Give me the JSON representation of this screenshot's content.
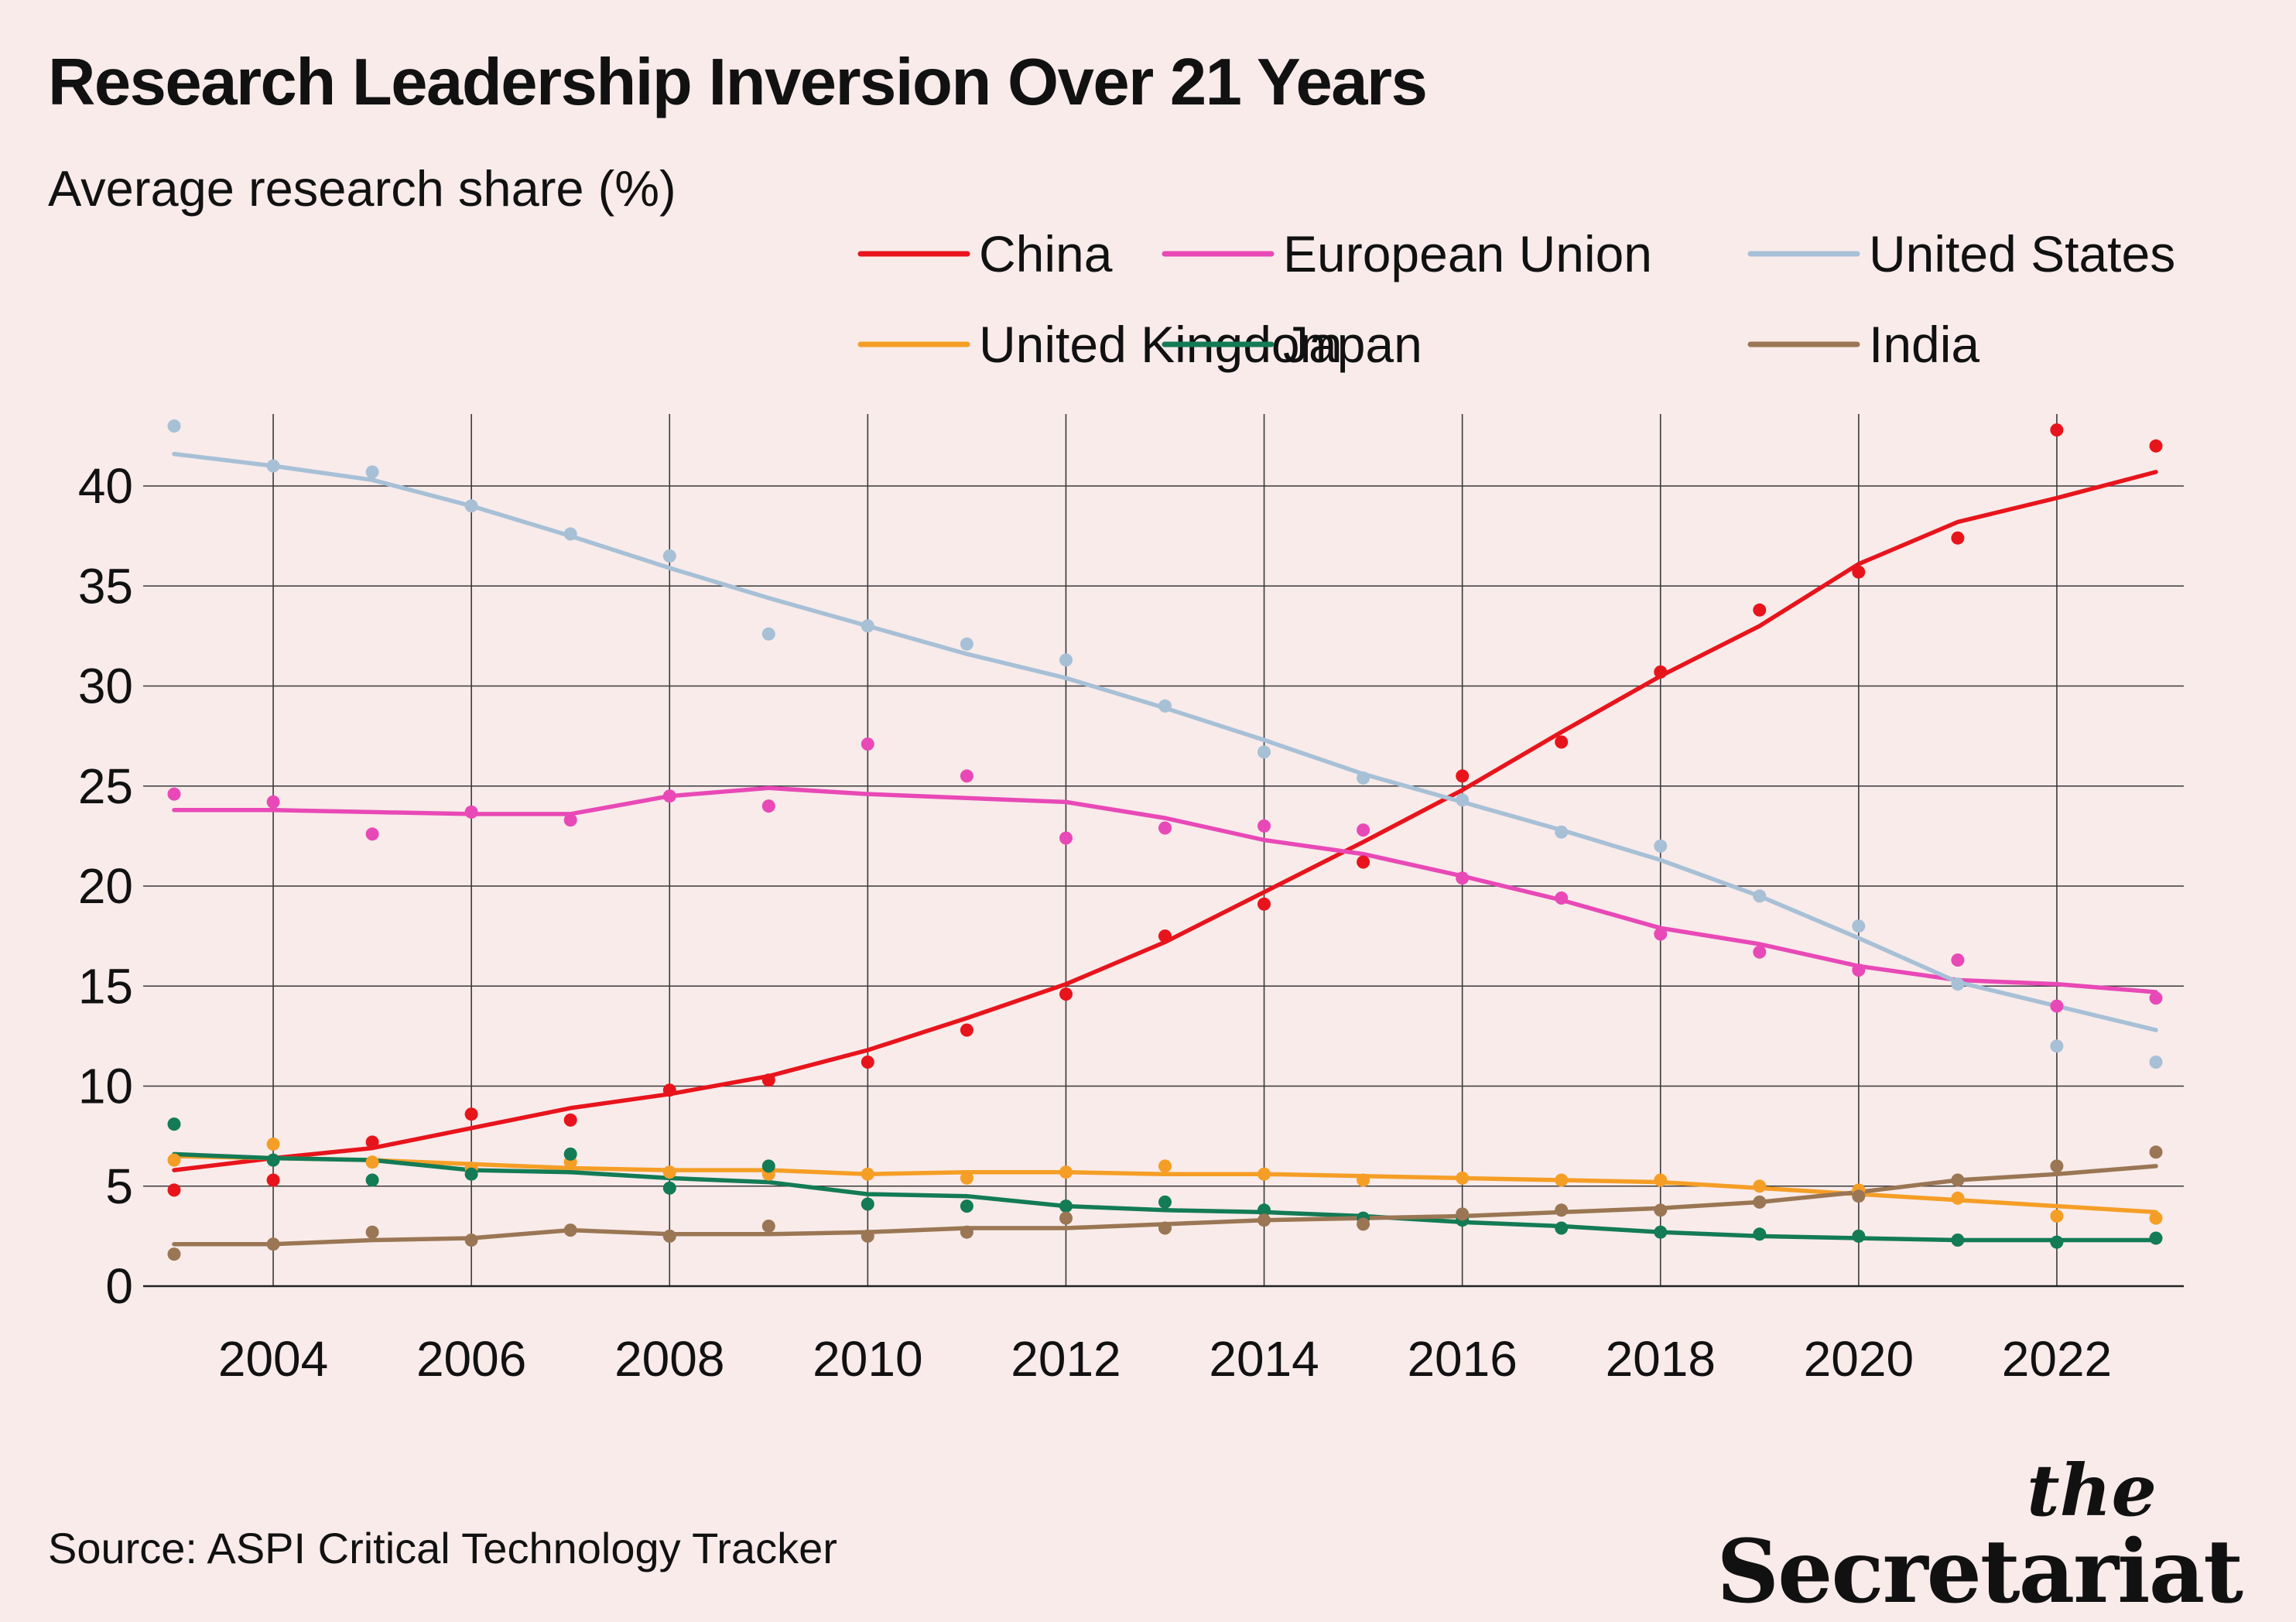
{
  "title": "Research Leadership Inversion Over 21 Years",
  "subtitle": "Average research share (%)",
  "source": "Source: ASPI Critical Technology Tracker",
  "logo": {
    "the": "the",
    "name": "Secretariat"
  },
  "chart_data": {
    "type": "line",
    "x_label": "",
    "y_label": "Average research share (%)",
    "xlim": [
      2003,
      2023
    ],
    "ylim": [
      0,
      42.5
    ],
    "x_ticks": [
      2004,
      2006,
      2008,
      2010,
      2012,
      2014,
      2016,
      2018,
      2020,
      2022
    ],
    "y_ticks": [
      0,
      5,
      10,
      15,
      20,
      25,
      30,
      35,
      40
    ],
    "grid": true,
    "legend_position": "top-right",
    "x": [
      2003,
      2004,
      2005,
      2006,
      2007,
      2008,
      2009,
      2010,
      2011,
      2012,
      2013,
      2014,
      2015,
      2016,
      2017,
      2018,
      2019,
      2020,
      2021,
      2022,
      2023
    ],
    "series": [
      {
        "name": "China",
        "color": "#e8141c",
        "points": [
          4.8,
          5.3,
          7.2,
          8.6,
          8.3,
          9.8,
          10.3,
          11.2,
          12.8,
          14.6,
          17.5,
          19.1,
          21.2,
          25.5,
          27.2,
          30.7,
          33.8,
          35.7,
          37.4,
          42.8,
          42.0
        ],
        "trend": [
          5.8,
          6.4,
          6.9,
          7.9,
          8.9,
          9.6,
          10.5,
          11.8,
          13.4,
          15.1,
          17.2,
          19.7,
          22.2,
          24.8,
          27.7,
          30.5,
          33.0,
          36.1,
          38.2,
          39.4,
          40.7
        ]
      },
      {
        "name": "European Union",
        "color": "#e849b6",
        "points": [
          24.6,
          24.2,
          22.6,
          23.7,
          23.3,
          24.5,
          24.0,
          27.1,
          25.5,
          22.4,
          22.9,
          23.0,
          22.8,
          20.4,
          19.4,
          17.6,
          16.7,
          15.8,
          16.3,
          14.0,
          14.4
        ],
        "trend": [
          23.8,
          23.8,
          23.7,
          23.6,
          23.6,
          24.5,
          24.9,
          24.6,
          24.4,
          24.2,
          23.4,
          22.3,
          21.6,
          20.5,
          19.3,
          17.9,
          17.1,
          16.0,
          15.3,
          15.1,
          14.7
        ]
      },
      {
        "name": "United States",
        "color": "#a7c0d6",
        "points": [
          43.0,
          41.0,
          40.7,
          39.0,
          37.6,
          36.5,
          32.6,
          33.0,
          32.1,
          31.3,
          29.0,
          26.7,
          25.4,
          24.3,
          22.7,
          22.0,
          19.5,
          18.0,
          15.1,
          12.0,
          11.2
        ],
        "trend": [
          41.6,
          41.0,
          40.3,
          39.0,
          37.5,
          35.9,
          34.4,
          33.0,
          31.6,
          30.4,
          28.9,
          27.3,
          25.6,
          24.2,
          22.8,
          21.3,
          19.5,
          17.4,
          15.2,
          14.0,
          12.8
        ]
      },
      {
        "name": "United Kingdom",
        "color": "#f59e26",
        "points": [
          6.3,
          7.1,
          6.2,
          5.9,
          6.2,
          5.7,
          5.6,
          5.6,
          5.4,
          5.7,
          6.0,
          5.6,
          5.3,
          5.4,
          5.3,
          5.3,
          5.0,
          4.8,
          4.4,
          3.5,
          3.4
        ],
        "trend": [
          6.5,
          6.4,
          6.3,
          6.1,
          5.9,
          5.8,
          5.8,
          5.6,
          5.7,
          5.7,
          5.6,
          5.6,
          5.5,
          5.4,
          5.3,
          5.2,
          4.9,
          4.6,
          4.3,
          4.0,
          3.7
        ]
      },
      {
        "name": "Japan",
        "color": "#137b55",
        "points": [
          8.1,
          6.3,
          5.3,
          5.6,
          6.6,
          4.9,
          6.0,
          4.1,
          4.0,
          4.0,
          4.2,
          3.8,
          3.4,
          3.3,
          2.9,
          2.7,
          2.6,
          2.5,
          2.3,
          2.2,
          2.4
        ],
        "trend": [
          6.6,
          6.4,
          6.3,
          5.8,
          5.7,
          5.4,
          5.2,
          4.6,
          4.5,
          4.0,
          3.8,
          3.7,
          3.5,
          3.2,
          3.0,
          2.7,
          2.5,
          2.4,
          2.3,
          2.3,
          2.3
        ]
      },
      {
        "name": "India",
        "color": "#9a7654",
        "points": [
          1.6,
          2.1,
          2.7,
          2.3,
          2.8,
          2.5,
          3.0,
          2.5,
          2.7,
          3.4,
          2.9,
          3.3,
          3.1,
          3.6,
          3.8,
          3.8,
          4.2,
          4.5,
          5.3,
          6.0,
          6.7
        ],
        "trend": [
          2.1,
          2.1,
          2.3,
          2.4,
          2.8,
          2.6,
          2.6,
          2.7,
          2.9,
          2.9,
          3.1,
          3.3,
          3.4,
          3.5,
          3.7,
          3.9,
          4.2,
          4.7,
          5.3,
          5.6,
          6.0
        ]
      }
    ]
  }
}
